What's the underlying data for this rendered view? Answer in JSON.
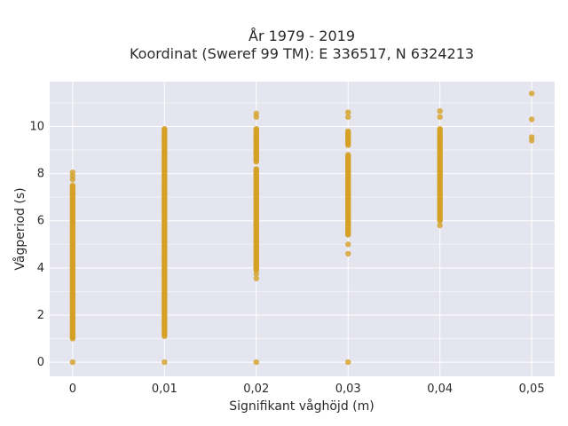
{
  "chart_data": {
    "type": "scatter",
    "title_line1": "År 1979 - 2019",
    "title_line2": "Koordinat (Sweref 99 TM): E 336517, N 6324213",
    "xlabel": "Signifikant våghöjd (m)",
    "ylabel": "Vågperiod (s)",
    "xlim": [
      -0.0025,
      0.0525
    ],
    "ylim": [
      -0.6,
      11.9
    ],
    "x_ticks": [
      0,
      0.01,
      0.02,
      0.03,
      0.04,
      0.05
    ],
    "x_tick_labels": [
      "0",
      "0,01",
      "0,02",
      "0,03",
      "0,04",
      "0,05"
    ],
    "y_ticks": [
      0,
      2,
      4,
      6,
      8,
      10
    ],
    "y_tick_labels": [
      "0",
      "2",
      "4",
      "6",
      "8",
      "10"
    ],
    "grid": true,
    "series": [
      {
        "color": "#D4A024",
        "columns": [
          {
            "x": 0,
            "ranges": [
              [
                1.0,
                7.5
              ]
            ],
            "points": [
              0,
              7.75,
              7.9,
              8.05
            ]
          },
          {
            "x": 0.01,
            "ranges": [
              [
                1.1,
                9.9
              ]
            ],
            "points": [
              0
            ]
          },
          {
            "x": 0.02,
            "ranges": [
              [
                3.9,
                8.2
              ],
              [
                8.5,
                9.9
              ]
            ],
            "points": [
              0,
              3.55,
              3.75,
              10.4,
              10.55
            ]
          },
          {
            "x": 0.03,
            "ranges": [
              [
                5.4,
                8.8
              ],
              [
                9.2,
                9.8
              ]
            ],
            "points": [
              0,
              4.6,
              5.0,
              10.4,
              10.6
            ]
          },
          {
            "x": 0.04,
            "ranges": [
              [
                6.0,
                9.9
              ]
            ],
            "points": [
              5.8,
              10.4,
              10.65
            ]
          },
          {
            "x": 0.05,
            "ranges": [],
            "points": [
              9.4,
              9.55,
              10.3,
              11.4
            ]
          }
        ]
      }
    ]
  }
}
